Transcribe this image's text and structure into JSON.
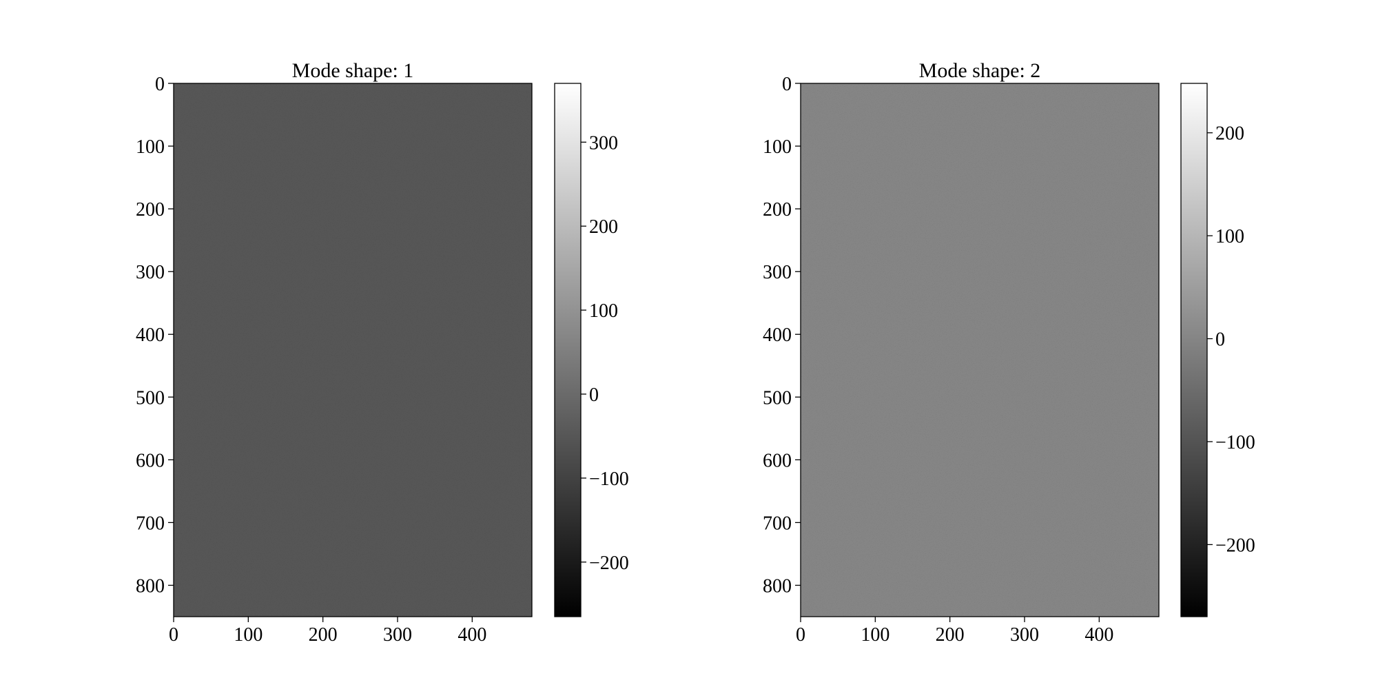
{
  "chart_data": [
    {
      "type": "heatmap",
      "title": "Mode shape: 1",
      "colormap": "gray",
      "image_fill_value": -50,
      "image_shape": [
        850,
        480
      ],
      "x_ticks": [
        0,
        100,
        200,
        300,
        400
      ],
      "x_tick_labels": [
        "0",
        "100",
        "200",
        "300",
        "400"
      ],
      "x_range": [
        0,
        480
      ],
      "y_ticks": [
        0,
        100,
        200,
        300,
        400,
        500,
        600,
        700,
        800
      ],
      "y_tick_labels": [
        "0",
        "100",
        "200",
        "300",
        "400",
        "500",
        "600",
        "700",
        "800"
      ],
      "y_range": [
        0,
        850
      ],
      "y_inverted": true,
      "colorbar": {
        "range": [
          -265,
          370
        ],
        "ticks": [
          -200,
          -100,
          0,
          100,
          200,
          300
        ],
        "tick_labels": [
          "−200",
          "−100",
          "0",
          "100",
          "200",
          "300"
        ]
      }
    },
    {
      "type": "heatmap",
      "title": "Mode shape: 2",
      "colormap": "gray",
      "image_fill_value": 0,
      "image_shape": [
        850,
        480
      ],
      "x_ticks": [
        0,
        100,
        200,
        300,
        400
      ],
      "x_tick_labels": [
        "0",
        "100",
        "200",
        "300",
        "400"
      ],
      "x_range": [
        0,
        480
      ],
      "y_ticks": [
        0,
        100,
        200,
        300,
        400,
        500,
        600,
        700,
        800
      ],
      "y_tick_labels": [
        "0",
        "100",
        "200",
        "300",
        "400",
        "500",
        "600",
        "700",
        "800"
      ],
      "y_range": [
        0,
        850
      ],
      "y_inverted": true,
      "colorbar": {
        "range": [
          -270,
          248
        ],
        "ticks": [
          -200,
          -100,
          0,
          100,
          200
        ],
        "tick_labels": [
          "−200",
          "−100",
          "0",
          "100",
          "200"
        ]
      }
    }
  ]
}
